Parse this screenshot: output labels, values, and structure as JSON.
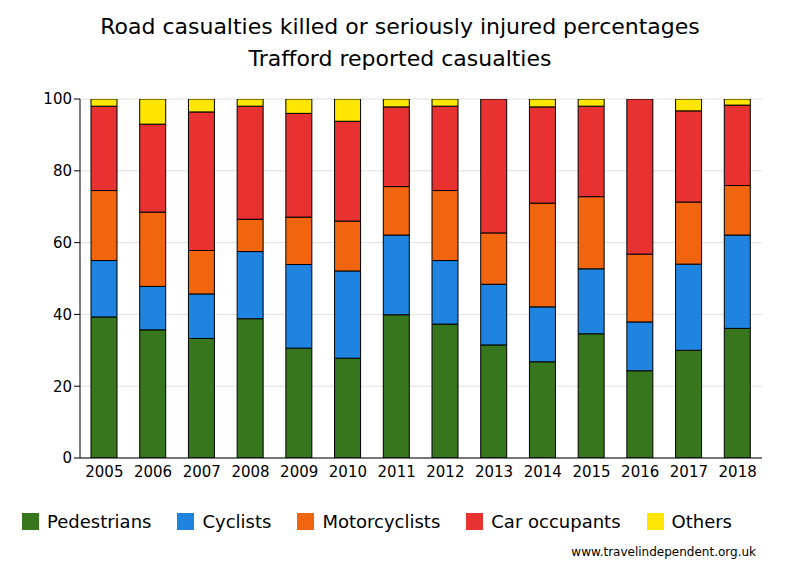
{
  "chart_data": {
    "type": "bar",
    "title": "Road casualties killed or seriously injured percentages",
    "subtitle": "Trafford reported casualties",
    "annotations": [
      "www.travelindependent.org.uk"
    ],
    "categories": [
      "2005",
      "2006",
      "2007",
      "2008",
      "2009",
      "2010",
      "2011",
      "2012",
      "2013",
      "2014",
      "2015",
      "2016",
      "2017",
      "2018"
    ],
    "series": [
      {
        "name": "Pedestrians",
        "color": "#38761d",
        "values": [
          39.3,
          35.7,
          33.3,
          38.8,
          30.6,
          27.8,
          39.9,
          37.3,
          31.5,
          26.8,
          34.6,
          24.3,
          30,
          36.1
        ]
      },
      {
        "name": "Cyclists",
        "color": "#1e84e0",
        "values": [
          15.7,
          12.1,
          12.4,
          18.7,
          23.3,
          24.3,
          22.2,
          17.7,
          16.9,
          15.3,
          18.1,
          13.6,
          24,
          26
        ]
      },
      {
        "name": "Motorcyclists",
        "color": "#f2650f",
        "values": [
          19.5,
          20.7,
          12.1,
          9,
          13.2,
          13.9,
          13.5,
          19.5,
          14.3,
          28.9,
          20.1,
          18.9,
          17.3,
          13.8
        ]
      },
      {
        "name": "Car occupants",
        "color": "#e83232",
        "values": [
          23.5,
          24.5,
          38.6,
          31.5,
          28.9,
          27.8,
          22.2,
          23.5,
          37.3,
          26.8,
          25.2,
          43.2,
          25.4,
          22.4
        ]
      },
      {
        "name": "Others",
        "color": "#ffe600",
        "values": [
          2,
          7,
          3.6,
          2,
          4,
          6.2,
          2.2,
          2,
          0,
          2.2,
          2,
          0,
          3.3,
          1.7
        ]
      }
    ],
    "ylim": [
      0,
      100
    ],
    "yticks": [
      0,
      20,
      40,
      60,
      80,
      100
    ],
    "stacked": true,
    "grid": true,
    "legend": "bottom"
  }
}
